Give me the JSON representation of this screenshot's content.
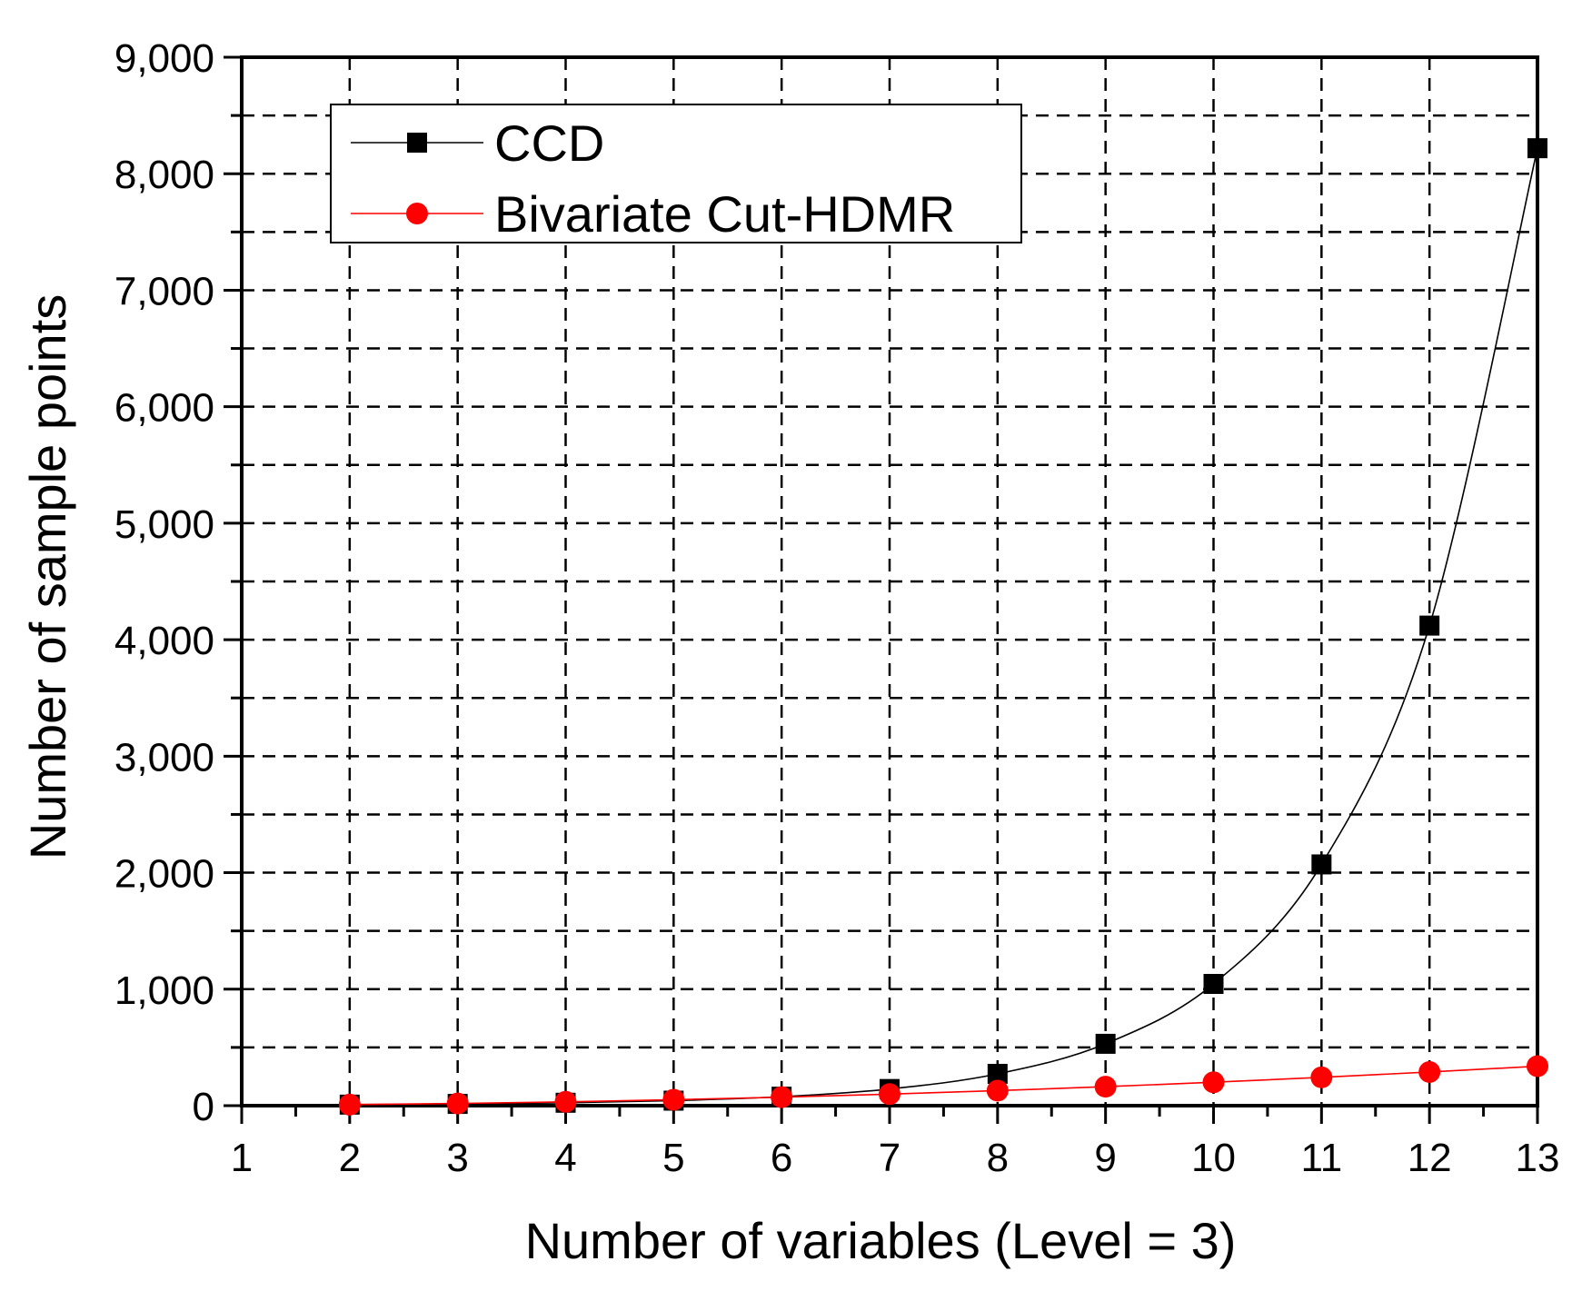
{
  "chart_data": {
    "type": "line",
    "title": "",
    "xlabel": "Number of variables (Level = 3)",
    "ylabel": "Number of sample points",
    "xlim": [
      1,
      13
    ],
    "ylim": [
      0,
      9000
    ],
    "x_ticks": [
      1,
      2,
      3,
      4,
      5,
      6,
      7,
      8,
      9,
      10,
      11,
      12,
      13
    ],
    "y_ticks": [
      0,
      1000,
      2000,
      3000,
      4000,
      5000,
      6000,
      7000,
      8000,
      9000
    ],
    "x_tick_labels": [
      "1",
      "2",
      "3",
      "4",
      "5",
      "6",
      "7",
      "8",
      "9",
      "10",
      "11",
      "12",
      "13"
    ],
    "y_tick_labels": [
      "0",
      "1,000",
      "2,000",
      "3,000",
      "4,000",
      "5,000",
      "6,000",
      "7,000",
      "8,000",
      "9,000"
    ],
    "grid": true,
    "legend_position": "top-left",
    "series": [
      {
        "name": "CCD",
        "color": "#000000",
        "marker": "square",
        "x": [
          2,
          3,
          4,
          5,
          6,
          7,
          8,
          9,
          10,
          11,
          12,
          13
        ],
        "values": [
          9,
          15,
          25,
          43,
          77,
          143,
          273,
          531,
          1045,
          2071,
          4121,
          8219
        ]
      },
      {
        "name": "Bivariate Cut-HDMR",
        "color": "#ff0000",
        "marker": "circle",
        "x": [
          2,
          3,
          4,
          5,
          6,
          7,
          8,
          9,
          10,
          11,
          12,
          13
        ],
        "values": [
          9,
          19,
          33,
          51,
          73,
          99,
          129,
          163,
          201,
          243,
          289,
          339
        ]
      }
    ]
  }
}
